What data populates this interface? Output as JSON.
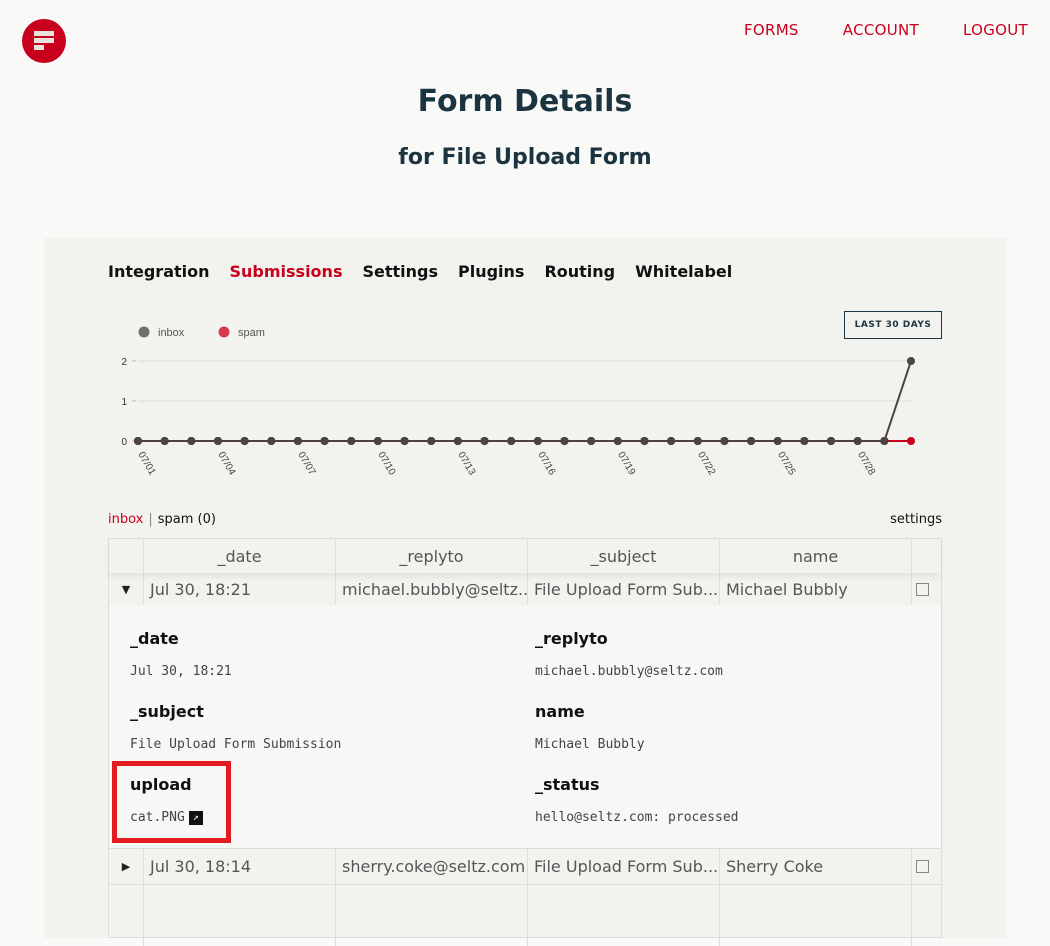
{
  "nav": {
    "forms": "FORMS",
    "account": "ACCOUNT",
    "logout": "LOGOUT"
  },
  "header": {
    "title": "Form Details",
    "subtitle": "for File Upload Form"
  },
  "tabs": [
    "Integration",
    "Submissions",
    "Settings",
    "Plugins",
    "Routing",
    "Whitelabel"
  ],
  "active_tab": "Submissions",
  "range_button": "LAST 30 DAYS",
  "chart_data": {
    "type": "line",
    "x": [
      "07/01",
      "07/02",
      "07/03",
      "07/04",
      "07/05",
      "07/06",
      "07/07",
      "07/08",
      "07/09",
      "07/10",
      "07/11",
      "07/12",
      "07/13",
      "07/14",
      "07/15",
      "07/16",
      "07/17",
      "07/18",
      "07/19",
      "07/20",
      "07/21",
      "07/22",
      "07/23",
      "07/24",
      "07/25",
      "07/26",
      "07/27",
      "07/28",
      "07/29",
      "07/30"
    ],
    "tick_labels": [
      "07/01",
      "07/04",
      "07/07",
      "07/10",
      "07/13",
      "07/16",
      "07/19",
      "07/22",
      "07/25",
      "07/28"
    ],
    "series": [
      {
        "name": "inbox",
        "color": "#4d4343",
        "values": [
          0,
          0,
          0,
          0,
          0,
          0,
          0,
          0,
          0,
          0,
          0,
          0,
          0,
          0,
          0,
          0,
          0,
          0,
          0,
          0,
          0,
          0,
          0,
          0,
          0,
          0,
          0,
          0,
          0,
          2
        ]
      },
      {
        "name": "spam",
        "color": "#c8001e",
        "values": [
          0,
          0,
          0,
          0,
          0,
          0,
          0,
          0,
          0,
          0,
          0,
          0,
          0,
          0,
          0,
          0,
          0,
          0,
          0,
          0,
          0,
          0,
          0,
          0,
          0,
          0,
          0,
          0,
          0,
          0
        ]
      }
    ],
    "ylim": [
      0,
      2
    ],
    "yticks": [
      "0",
      "1",
      "2"
    ],
    "grid": true,
    "legend": "top-left"
  },
  "filters": {
    "inbox": "inbox",
    "spam": "spam (0)",
    "settings": "settings"
  },
  "table": {
    "columns": [
      "_date",
      "_replyto",
      "_subject",
      "name"
    ],
    "rows": [
      {
        "expanded": true,
        "cells": [
          "Jul 30, 18:21",
          "michael.bubbly@seltz....",
          "File Upload Form Sub...",
          "Michael Bubbly"
        ]
      },
      {
        "expanded": false,
        "cells": [
          "Jul 30, 18:14",
          "sherry.coke@seltz.com",
          "File Upload Form Sub...",
          "Sherry Coke"
        ]
      }
    ]
  },
  "detail": {
    "date_label": "_date",
    "date": "Jul 30, 18:21",
    "replyto_label": "_replyto",
    "replyto": "michael.bubbly@seltz.com",
    "subject_label": "_subject",
    "subject": "File Upload Form Submission",
    "name_label": "name",
    "name": "Michael Bubbly",
    "upload_label": "upload",
    "upload": "cat.PNG",
    "status_label": "_status",
    "status": "hello@seltz.com: processed"
  }
}
